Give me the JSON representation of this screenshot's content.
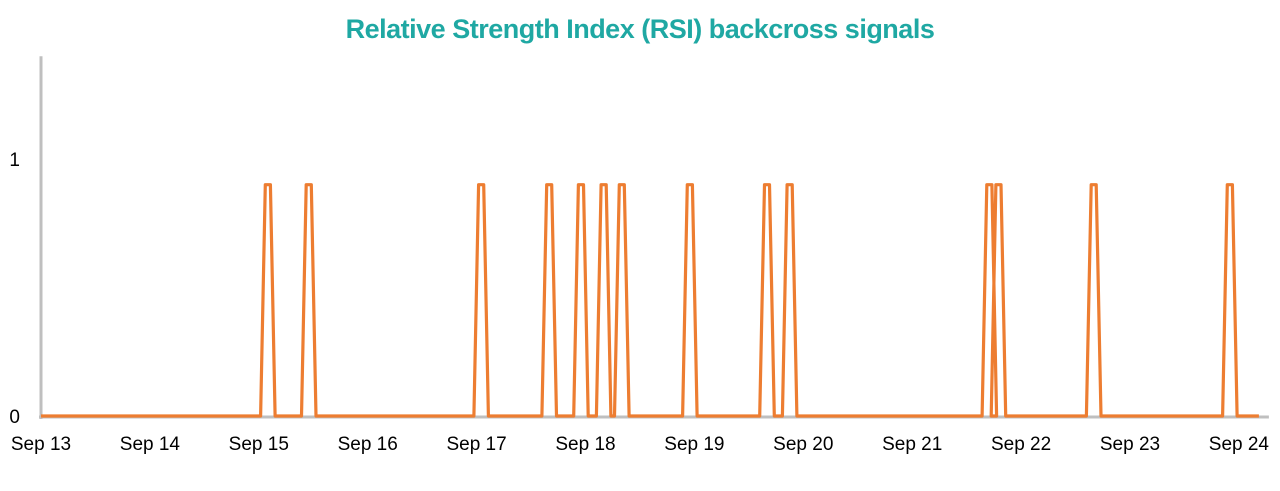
{
  "chart_data": {
    "type": "line",
    "title": "Relative Strength Index (RSI) backcross signals",
    "xlabel": "",
    "ylabel": "",
    "x_tick_labels": [
      "Sep 13",
      "Sep 14",
      "Sep 15",
      "Sep 16",
      "Sep 17",
      "Sep 18",
      "Sep 19",
      "Sep 20",
      "Sep 21",
      "Sep 22",
      "Sep 23",
      "Sep 24"
    ],
    "y_tick_labels": [
      "0",
      "1"
    ],
    "ylim": [
      0,
      1.4
    ],
    "xlim": [
      "Sep 13",
      "Sep 24"
    ],
    "grid": false,
    "legend": "none",
    "series": [
      {
        "color": "#ed7d31",
        "signal_value": 0.9,
        "signal_times": [
          "Sep 15 02:00",
          "Sep 15 11:00",
          "Sep 17 01:00",
          "Sep 17 16:00",
          "Sep 17 23:00",
          "Sep 18 04:00",
          "Sep 18 08:00",
          "Sep 18 23:00",
          "Sep 19 16:00",
          "Sep 19 21:00",
          "Sep 21 17:00",
          "Sep 21 19:00",
          "Sep 22 16:00",
          "Sep 23 22:00"
        ]
      }
    ]
  },
  "colors": {
    "title": "#1fa8a3",
    "line": "#ed7d31",
    "axis": "#bfbfbf"
  }
}
